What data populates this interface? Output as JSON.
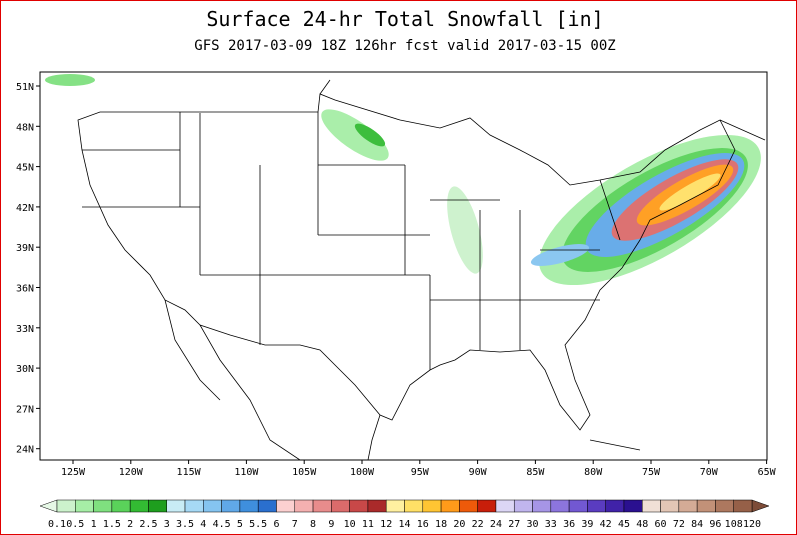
{
  "title": "Surface 24-hr Total Snowfall [in]",
  "subtitle": "GFS 2017-03-09 18Z 126hr fcst valid 2017-03-15 00Z",
  "lat_labels": [
    "51N",
    "48N",
    "45N",
    "42N",
    "39N",
    "36N",
    "33N",
    "30N",
    "27N",
    "24N"
  ],
  "lon_labels": [
    "125W",
    "120W",
    "115W",
    "110W",
    "105W",
    "100W",
    "95W",
    "90W",
    "85W",
    "80W",
    "75W",
    "70W",
    "65W"
  ],
  "colorbar": {
    "labels": [
      "0.1",
      "0.5",
      "1",
      "1.5",
      "2",
      "2.5",
      "3",
      "3.5",
      "4",
      "4.5",
      "5",
      "5.5",
      "6",
      "7",
      "8",
      "9",
      "10",
      "11",
      "12",
      "14",
      "16",
      "18",
      "20",
      "22",
      "24",
      "27",
      "30",
      "33",
      "36",
      "39",
      "42",
      "45",
      "48",
      "60",
      "72",
      "84",
      "96",
      "108",
      "120"
    ],
    "colors": [
      "#ccf2cc",
      "#a6eea6",
      "#7fe07f",
      "#5ad25a",
      "#33bb33",
      "#1e9e1e",
      "#c8ecf5",
      "#a6d9f5",
      "#85c4f0",
      "#60a8e8",
      "#3f8fdd",
      "#2a6fce",
      "#fcd0d0",
      "#f4b0b0",
      "#e88c8c",
      "#db6b6b",
      "#c84848",
      "#aa2a2a",
      "#fff0a0",
      "#ffe066",
      "#ffc533",
      "#ff9b1a",
      "#ee5a0a",
      "#c81e0a",
      "#dcd6f5",
      "#c0b5ee",
      "#a695e6",
      "#8c75dd",
      "#7258d2",
      "#5a3cc0",
      "#4022a8",
      "#2a1090",
      "#f0e0d6",
      "#e3c6b5",
      "#d4ab96",
      "#c29178",
      "#ad785f",
      "#966048"
    ],
    "under_color": "#e6f8e6",
    "over_color": "#7d4c38"
  }
}
